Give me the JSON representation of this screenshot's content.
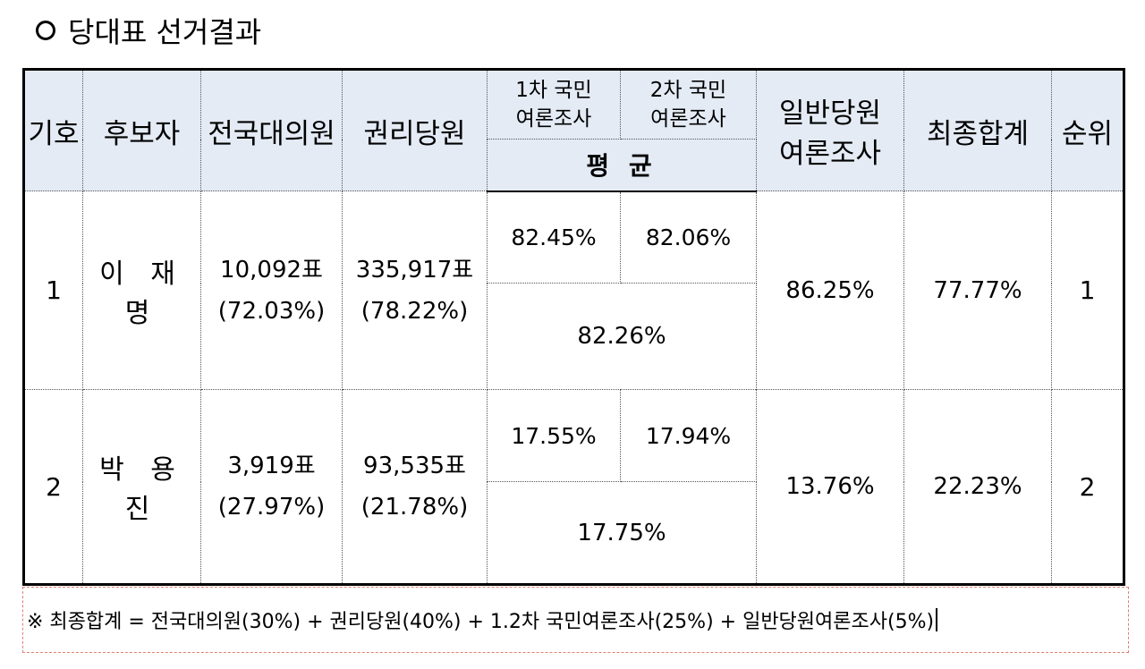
{
  "title": "당대표 선거결과",
  "headers": {
    "number": "기호",
    "candidate": "후보자",
    "delegates": "전국대의원",
    "members": "권리당원",
    "survey1_line1": "1차 국민",
    "survey1_line2": "여론조사",
    "survey2_line1": "2차 국민",
    "survey2_line2": "여론조사",
    "average": "평 균",
    "general_line1": "일반당원",
    "general_line2": "여론조사",
    "total": "최종합계",
    "rank": "순위"
  },
  "rows": [
    {
      "number": "1",
      "name": "이 재 명",
      "delegates_votes": "10,092표",
      "delegates_pct": "(72.03%)",
      "members_votes": "335,917표",
      "members_pct": "(78.22%)",
      "survey1": "82.45%",
      "survey2": "82.06%",
      "survey_avg": "82.26%",
      "general": "86.25%",
      "total": "77.77%",
      "rank": "1"
    },
    {
      "number": "2",
      "name": "박 용 진",
      "delegates_votes": "3,919표",
      "delegates_pct": "(27.97%)",
      "members_votes": "93,535표",
      "members_pct": "(21.78%)",
      "survey1": "17.55%",
      "survey2": "17.94%",
      "survey_avg": "17.75%",
      "general": "13.76%",
      "total": "22.23%",
      "rank": "2"
    }
  ],
  "note": "※ 최종합계 = 전국대의원(30%) + 권리당원(40%) + 1.2차 국민여론조사(25%) + 일반당원여론조사(5%)"
}
